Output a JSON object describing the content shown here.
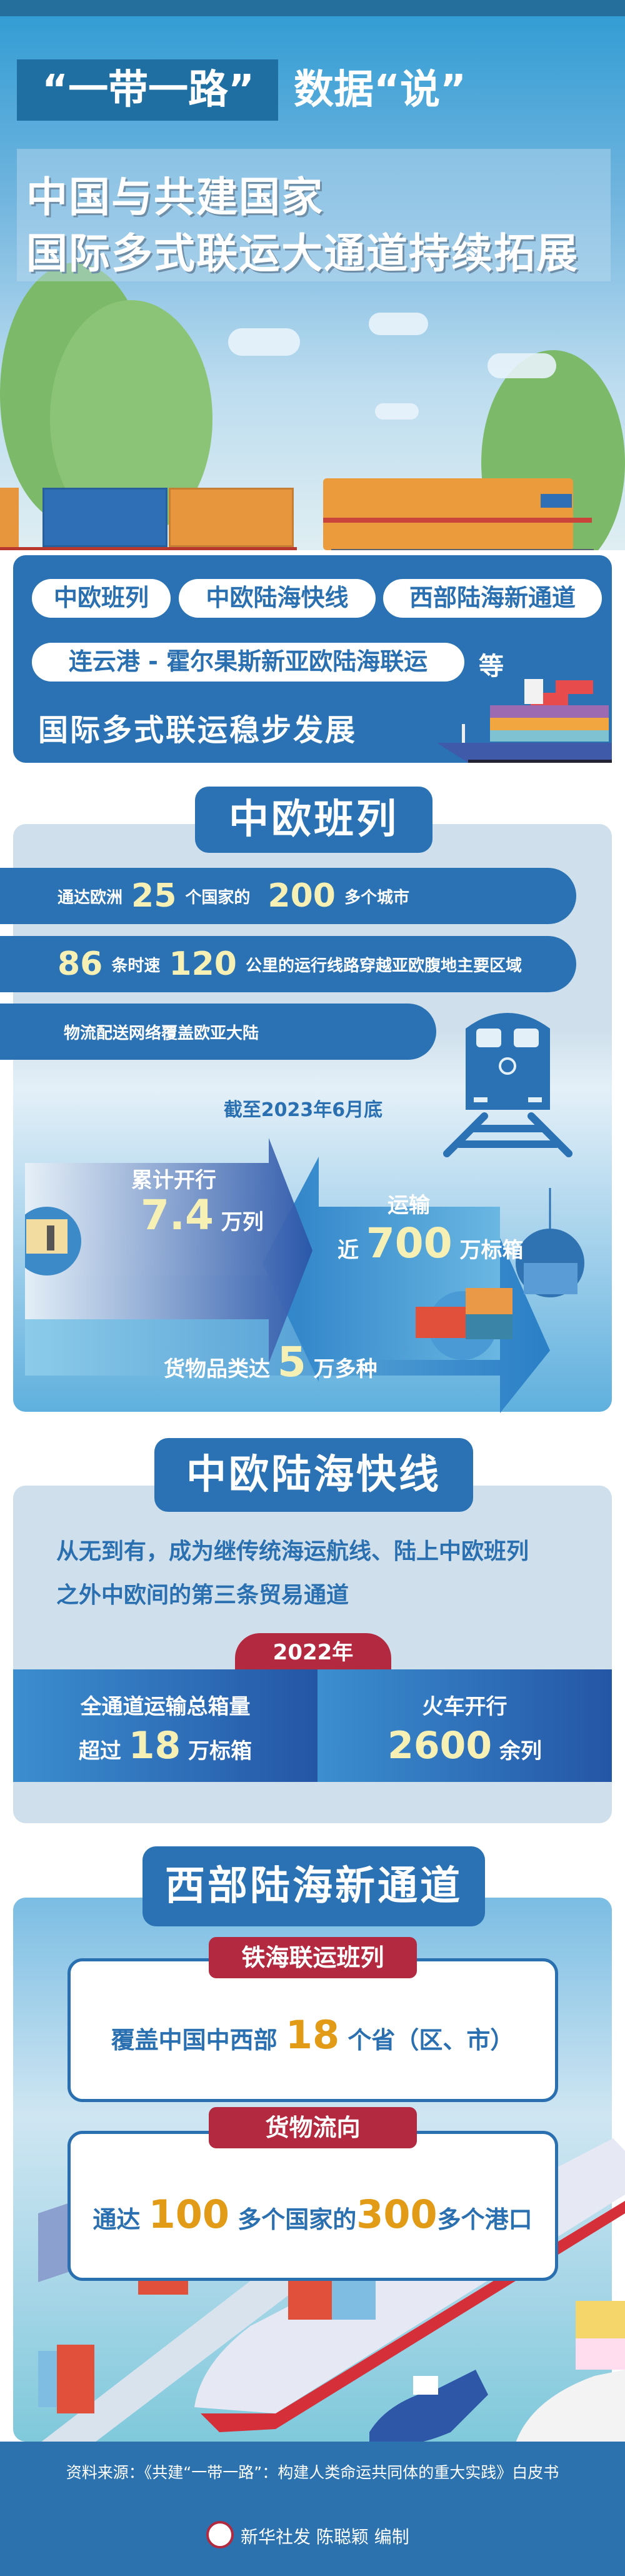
{
  "header": {
    "kicker_left": "“一带一路”",
    "kicker_right": "数据“说”",
    "title_line1": "中国与共建国家",
    "title_line2": "国际多式联运大通道持续拓展"
  },
  "intro": {
    "pills": [
      "中欧班列",
      "中欧陆海快线",
      "西部陆海新通道",
      "连云港 - 霍尔果斯新亚欧陆海联运"
    ],
    "etc": "等",
    "tagline": "国际多式联运稳步发展"
  },
  "china_europe_railway": {
    "title": "中欧班列",
    "row1": {
      "pre": "通达欧洲",
      "n1": "25",
      "mid": "个国家的",
      "n2": "200",
      "post": "多个城市"
    },
    "row2": {
      "n1": "86",
      "mid": "条时速",
      "n2": "120",
      "post": "公里的运行线路穿越亚欧腹地主要区域"
    },
    "row3": "物流配送网络覆盖欧亚大陆",
    "as_of": "截至2023年6月底",
    "stat1": {
      "label": "累计开行",
      "value": "7.4",
      "unit": "万列"
    },
    "stat2": {
      "label": "运输",
      "pre": "近",
      "value": "700",
      "unit": "万标箱"
    },
    "stat3": {
      "pre": "货物品类达",
      "value": "5",
      "unit": "万多种"
    }
  },
  "land_sea_express": {
    "title": "中欧陆海快线",
    "desc_line1": "从无到有，成为继传统海运航线、陆上中欧班列",
    "desc_line2": "之外中欧间的第三条贸易通道",
    "year": "2022年",
    "left": {
      "label": "全通道运输总箱量",
      "pre": "超过",
      "value": "18",
      "unit": "万标箱"
    },
    "right": {
      "label": "火车开行",
      "value": "2600",
      "unit": "余列"
    }
  },
  "western_corridor": {
    "title": "西部陆海新通道",
    "box1": {
      "tab": "铁海联运班列",
      "pre": "覆盖中国中西部",
      "value": "18",
      "post": "个省（区、市）"
    },
    "box2": {
      "tab": "货物流向",
      "pre": "通达",
      "n1": "100",
      "mid": "多个国家的",
      "n2": "300",
      "post": "多个港口"
    }
  },
  "footer": {
    "source": "资料来源：《共建“一带一路”：构建人类命运共同体的重大实践》白皮书",
    "credit": "新华社发 陈聪颖 编制",
    "logo_text": "新华社"
  },
  "colors": {
    "primary": "#2a72b4",
    "accent_red": "#b32a40",
    "number_yellow": "#f7f0b5",
    "number_orange": "#e29b17"
  }
}
